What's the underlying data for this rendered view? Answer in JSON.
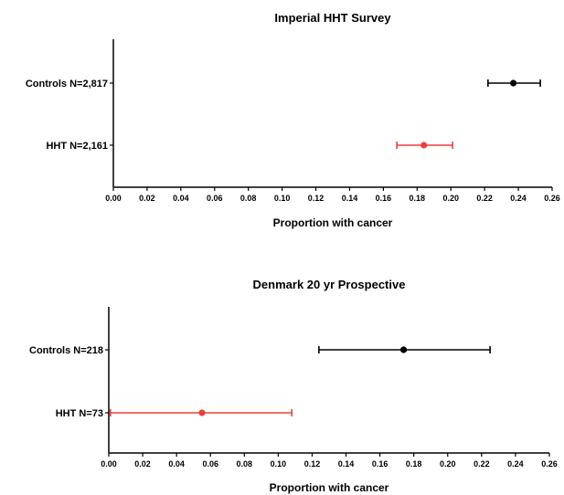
{
  "chart_data": [
    {
      "type": "scatter",
      "subtype": "forest-plot",
      "title": "Imperial HHT Survey",
      "xlabel": "Proportion with cancer",
      "ylabel": "",
      "xlim": [
        0,
        0.26
      ],
      "xticks": [
        "0.00",
        "0.02",
        "0.04",
        "0.06",
        "0.08",
        "0.10",
        "0.12",
        "0.14",
        "0.16",
        "0.18",
        "0.20",
        "0.22",
        "0.24",
        "0.26"
      ],
      "grid": false,
      "series": [
        {
          "label": "Controls N=2,817",
          "estimate": 0.237,
          "ci_low": 0.222,
          "ci_high": 0.253,
          "color": "#000000"
        },
        {
          "label": "HHT N=2,161",
          "estimate": 0.184,
          "ci_low": 0.168,
          "ci_high": 0.201,
          "color": "#e8403a"
        }
      ]
    },
    {
      "type": "scatter",
      "subtype": "forest-plot",
      "title": "Denmark 20 yr Prospective",
      "xlabel": "Proportion with cancer",
      "ylabel": "",
      "xlim": [
        0,
        0.26
      ],
      "xticks": [
        "0.00",
        "0.02",
        "0.04",
        "0.06",
        "0.08",
        "0.10",
        "0.12",
        "0.14",
        "0.16",
        "0.18",
        "0.20",
        "0.22",
        "0.24",
        "0.26"
      ],
      "grid": false,
      "series": [
        {
          "label": "Controls N=218",
          "estimate": 0.174,
          "ci_low": 0.124,
          "ci_high": 0.225,
          "color": "#000000"
        },
        {
          "label": "HHT N=73",
          "estimate": 0.055,
          "ci_low": 0.001,
          "ci_high": 0.108,
          "color": "#e8403a"
        }
      ]
    }
  ]
}
